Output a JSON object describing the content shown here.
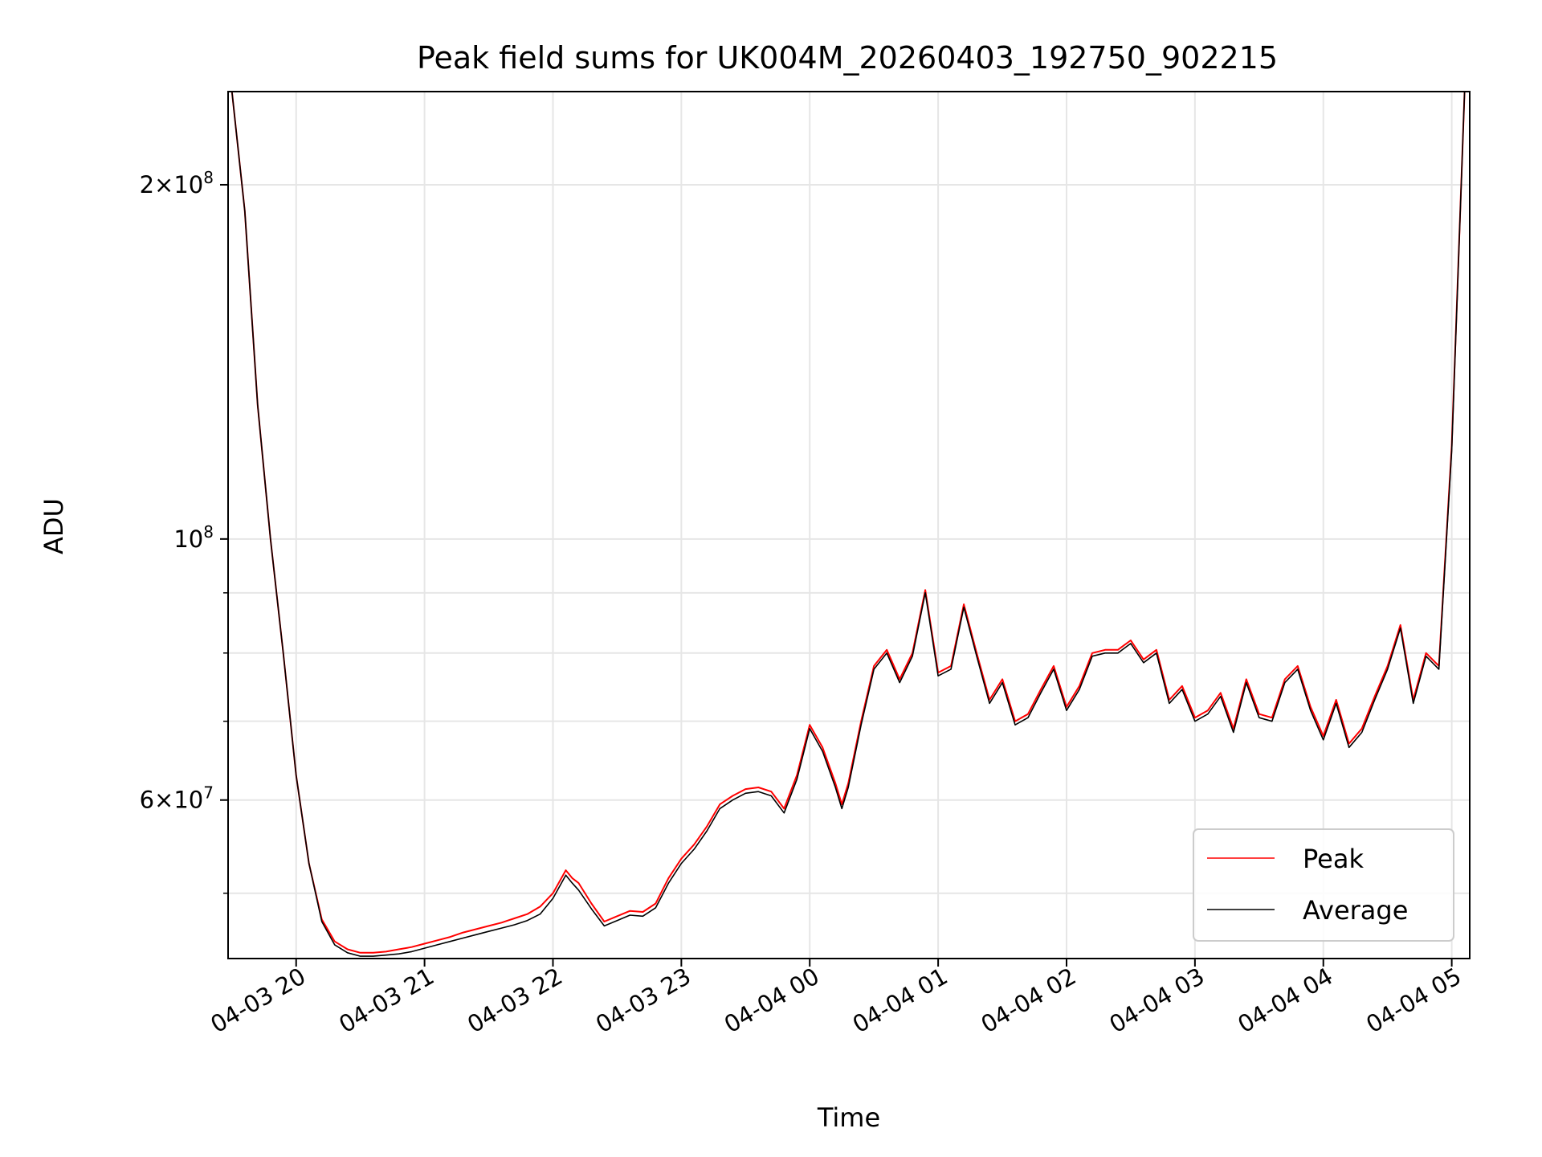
{
  "chart_data": {
    "type": "line",
    "title": "Peak field sums for UK004M_20260403_192750_902215",
    "xlabel": "Time",
    "ylabel": "ADU",
    "yscale": "log",
    "grid": true,
    "legend_location": "lower-right",
    "x_unit": "hours since 2026-04-03 00:00",
    "xlim": [
      19.47,
      29.14
    ],
    "ylim": [
      44000000,
      240000000
    ],
    "x_ticks": [
      {
        "value": 20,
        "label": "04-03 20"
      },
      {
        "value": 21,
        "label": "04-03 21"
      },
      {
        "value": 22,
        "label": "04-03 22"
      },
      {
        "value": 23,
        "label": "04-03 23"
      },
      {
        "value": 24,
        "label": "04-04 00"
      },
      {
        "value": 25,
        "label": "04-04 01"
      },
      {
        "value": 26,
        "label": "04-04 02"
      },
      {
        "value": 27,
        "label": "04-04 03"
      },
      {
        "value": 28,
        "label": "04-04 04"
      },
      {
        "value": 29,
        "label": "04-04 05"
      }
    ],
    "y_major_ticks": [
      {
        "value": 60000000,
        "mant": "6",
        "exp": "7"
      },
      {
        "value": 100000000,
        "mant": "",
        "exp": "8"
      },
      {
        "value": 200000000,
        "mant": "2",
        "exp": "8"
      }
    ],
    "y_minor_ticks": [
      50000000,
      70000000,
      80000000,
      90000000
    ],
    "x": [
      19.5,
      19.6,
      19.7,
      19.8,
      19.9,
      20.0,
      20.1,
      20.2,
      20.3,
      20.4,
      20.5,
      20.6,
      20.7,
      20.8,
      20.9,
      21.0,
      21.1,
      21.2,
      21.3,
      21.4,
      21.5,
      21.6,
      21.7,
      21.8,
      21.9,
      22.0,
      22.1,
      22.15,
      22.2,
      22.3,
      22.4,
      22.5,
      22.6,
      22.7,
      22.8,
      22.9,
      23.0,
      23.1,
      23.2,
      23.3,
      23.4,
      23.5,
      23.6,
      23.7,
      23.8,
      23.9,
      24.0,
      24.1,
      24.2,
      24.25,
      24.3,
      24.4,
      24.5,
      24.6,
      24.7,
      24.8,
      24.9,
      25.0,
      25.1,
      25.2,
      25.3,
      25.4,
      25.5,
      25.6,
      25.7,
      25.8,
      25.9,
      26.0,
      26.1,
      26.2,
      26.3,
      26.4,
      26.5,
      26.6,
      26.7,
      26.8,
      26.9,
      27.0,
      27.1,
      27.2,
      27.3,
      27.4,
      27.5,
      27.6,
      27.7,
      27.8,
      27.9,
      28.0,
      28.1,
      28.2,
      28.3,
      28.4,
      28.5,
      28.6,
      28.7,
      28.8,
      28.9,
      29.0,
      29.1
    ],
    "series": [
      {
        "name": "Peak",
        "color": "#ff0000",
        "values": [
          240000000,
          190000000,
          130000000,
          100000000,
          80000000,
          63000000,
          53000000,
          47500000,
          45500000,
          44800000,
          44500000,
          44500000,
          44600000,
          44800000,
          45000000,
          45300000,
          45600000,
          45900000,
          46300000,
          46600000,
          46900000,
          47200000,
          47600000,
          48000000,
          48700000,
          50000000,
          52300000,
          51500000,
          51000000,
          49000000,
          47300000,
          47800000,
          48300000,
          48200000,
          49000000,
          51500000,
          53500000,
          55000000,
          57000000,
          59500000,
          60500000,
          61300000,
          61500000,
          61000000,
          59000000,
          63000000,
          69500000,
          66500000,
          62000000,
          59500000,
          62000000,
          70000000,
          78000000,
          80500000,
          76000000,
          80000000,
          90500000,
          77000000,
          78000000,
          88000000,
          80000000,
          73000000,
          76000000,
          70000000,
          71000000,
          74500000,
          78000000,
          72000000,
          75000000,
          80000000,
          80500000,
          80500000,
          82000000,
          79000000,
          80500000,
          73000000,
          75000000,
          70500000,
          71500000,
          74000000,
          69000000,
          76000000,
          71000000,
          70500000,
          76000000,
          78000000,
          72000000,
          68000000,
          73000000,
          67000000,
          69000000,
          73500000,
          78000000,
          84500000,
          73000000,
          80000000,
          78000000,
          120000000,
          240000000
        ]
      },
      {
        "name": "Average",
        "color": "#000000",
        "values": [
          240000000,
          190000000,
          130000000,
          100000000,
          80000000,
          63000000,
          53000000,
          47300000,
          45200000,
          44500000,
          44200000,
          44200000,
          44300000,
          44400000,
          44600000,
          44900000,
          45200000,
          45500000,
          45800000,
          46100000,
          46400000,
          46700000,
          47000000,
          47400000,
          48000000,
          49500000,
          51800000,
          51000000,
          50300000,
          48500000,
          46900000,
          47400000,
          47900000,
          47800000,
          48600000,
          51000000,
          53000000,
          54500000,
          56500000,
          59000000,
          60000000,
          60800000,
          61000000,
          60500000,
          58500000,
          62500000,
          69000000,
          66000000,
          61500000,
          59000000,
          61500000,
          69500000,
          77500000,
          80000000,
          75500000,
          79500000,
          90000000,
          76500000,
          77500000,
          87500000,
          79500000,
          72500000,
          75500000,
          69500000,
          70500000,
          74000000,
          77500000,
          71500000,
          74500000,
          79500000,
          80000000,
          80000000,
          81500000,
          78500000,
          80000000,
          72500000,
          74500000,
          70000000,
          71000000,
          73500000,
          68500000,
          75500000,
          70500000,
          70000000,
          75500000,
          77500000,
          71500000,
          67500000,
          72500000,
          66500000,
          68500000,
          73000000,
          77500000,
          84000000,
          72500000,
          79500000,
          77500000,
          119000000,
          240000000
        ]
      }
    ]
  },
  "legend": {
    "items": [
      {
        "label": "Peak",
        "color": "#ff0000"
      },
      {
        "label": "Average",
        "color": "#000000"
      }
    ]
  }
}
